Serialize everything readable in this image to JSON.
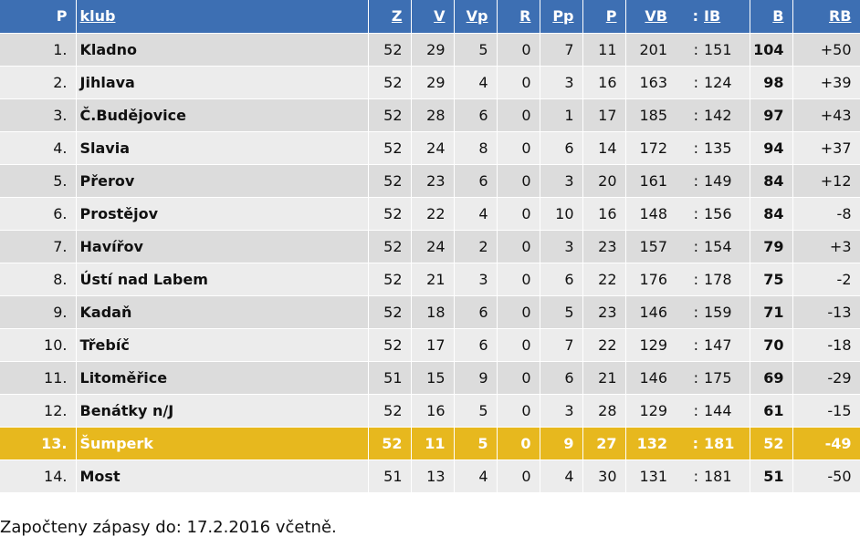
{
  "table": {
    "headers": {
      "p": "P",
      "club": "klub",
      "z": "Z",
      "v": "V",
      "vp": "Vp",
      "r": "R",
      "pp": "Pp",
      "pl": "P",
      "vb": "VB",
      "colon": ":",
      "ib": "IB",
      "b": "B",
      "rb": "RB"
    },
    "rows": [
      {
        "p": "1.",
        "club": "Kladno",
        "z": "52",
        "v": "29",
        "vp": "5",
        "r": "0",
        "pp": "7",
        "pl": "11",
        "vb": "201",
        "colon": ":",
        "ib": "151",
        "b": "104",
        "rb": "+50"
      },
      {
        "p": "2.",
        "club": "Jihlava",
        "z": "52",
        "v": "29",
        "vp": "4",
        "r": "0",
        "pp": "3",
        "pl": "16",
        "vb": "163",
        "colon": ":",
        "ib": "124",
        "b": "98",
        "rb": "+39"
      },
      {
        "p": "3.",
        "club": "Č.Budějovice",
        "z": "52",
        "v": "28",
        "vp": "6",
        "r": "0",
        "pp": "1",
        "pl": "17",
        "vb": "185",
        "colon": ":",
        "ib": "142",
        "b": "97",
        "rb": "+43"
      },
      {
        "p": "4.",
        "club": "Slavia",
        "z": "52",
        "v": "24",
        "vp": "8",
        "r": "0",
        "pp": "6",
        "pl": "14",
        "vb": "172",
        "colon": ":",
        "ib": "135",
        "b": "94",
        "rb": "+37"
      },
      {
        "p": "5.",
        "club": "Přerov",
        "z": "52",
        "v": "23",
        "vp": "6",
        "r": "0",
        "pp": "3",
        "pl": "20",
        "vb": "161",
        "colon": ":",
        "ib": "149",
        "b": "84",
        "rb": "+12"
      },
      {
        "p": "6.",
        "club": "Prostějov",
        "z": "52",
        "v": "22",
        "vp": "4",
        "r": "0",
        "pp": "10",
        "pl": "16",
        "vb": "148",
        "colon": ":",
        "ib": "156",
        "b": "84",
        "rb": "-8"
      },
      {
        "p": "7.",
        "club": "Havířov",
        "z": "52",
        "v": "24",
        "vp": "2",
        "r": "0",
        "pp": "3",
        "pl": "23",
        "vb": "157",
        "colon": ":",
        "ib": "154",
        "b": "79",
        "rb": "+3"
      },
      {
        "p": "8.",
        "club": "Ústí nad Labem",
        "z": "52",
        "v": "21",
        "vp": "3",
        "r": "0",
        "pp": "6",
        "pl": "22",
        "vb": "176",
        "colon": ":",
        "ib": "178",
        "b": "75",
        "rb": "-2"
      },
      {
        "p": "9.",
        "club": "Kadaň",
        "z": "52",
        "v": "18",
        "vp": "6",
        "r": "0",
        "pp": "5",
        "pl": "23",
        "vb": "146",
        "colon": ":",
        "ib": "159",
        "b": "71",
        "rb": "-13"
      },
      {
        "p": "10.",
        "club": "Třebíč",
        "z": "52",
        "v": "17",
        "vp": "6",
        "r": "0",
        "pp": "7",
        "pl": "22",
        "vb": "129",
        "colon": ":",
        "ib": "147",
        "b": "70",
        "rb": "-18"
      },
      {
        "p": "11.",
        "club": "Litoměřice",
        "z": "51",
        "v": "15",
        "vp": "9",
        "r": "0",
        "pp": "6",
        "pl": "21",
        "vb": "146",
        "colon": ":",
        "ib": "175",
        "b": "69",
        "rb": "-29"
      },
      {
        "p": "12.",
        "club": "Benátky n/J",
        "z": "52",
        "v": "16",
        "vp": "5",
        "r": "0",
        "pp": "3",
        "pl": "28",
        "vb": "129",
        "colon": ":",
        "ib": "144",
        "b": "61",
        "rb": "-15"
      },
      {
        "p": "13.",
        "club": "Šumperk",
        "z": "52",
        "v": "11",
        "vp": "5",
        "r": "0",
        "pp": "9",
        "pl": "27",
        "vb": "132",
        "colon": ":",
        "ib": "181",
        "b": "52",
        "rb": "-49"
      },
      {
        "p": "14.",
        "club": "Most",
        "z": "51",
        "v": "13",
        "vp": "4",
        "r": "0",
        "pp": "4",
        "pl": "30",
        "vb": "131",
        "colon": ":",
        "ib": "181",
        "b": "51",
        "rb": "-50"
      }
    ],
    "highlighted_row_index": 12
  },
  "colors": {
    "header_bg": "#3d6fb3",
    "row_bg": "#dcdcdc",
    "row_alt_bg": "#ececec",
    "highlight_bg": "#e7b81e"
  },
  "footnote": "Započteny zápasy do: 17.2.2016 včetně."
}
